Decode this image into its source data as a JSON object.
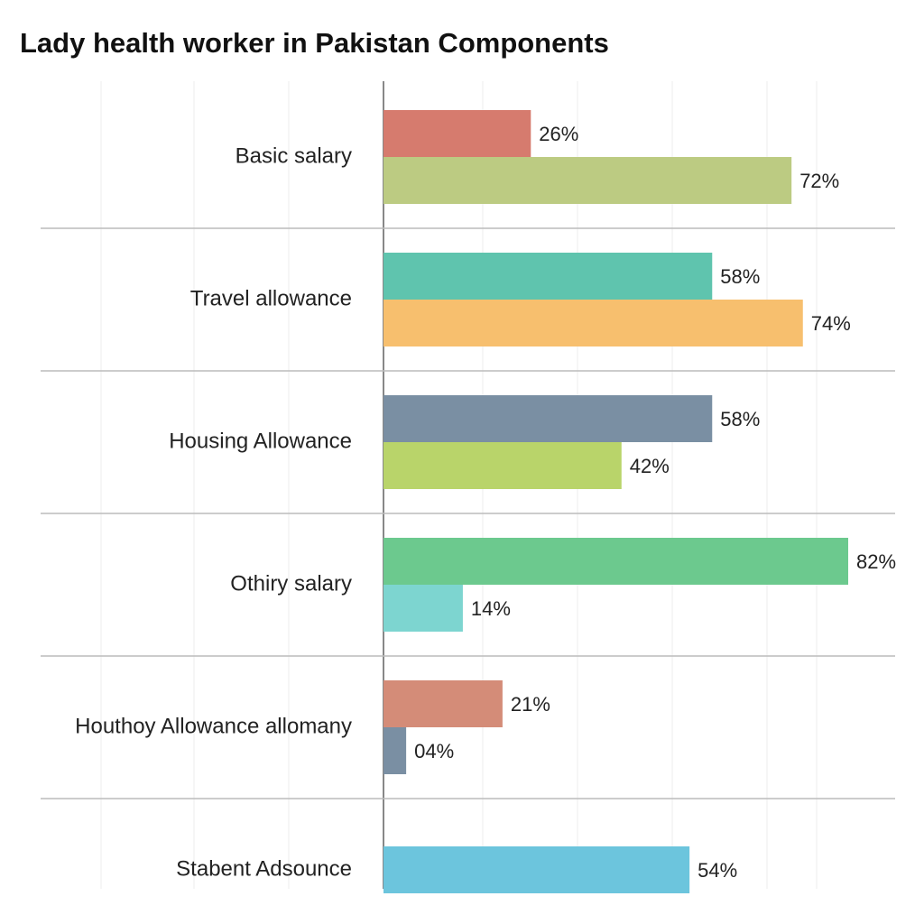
{
  "chart_data": {
    "type": "bar",
    "title": "Lady health worker in Pakistan Components",
    "categories": [
      "Basic salary",
      "Travel allowance",
      "Housing Allowance",
      "Othiry salary",
      "Houthoy Allowance allomany",
      "Stabent Adsounce"
    ],
    "series": [
      {
        "colors": [
          "#d67b6e",
          "#5fc4ae",
          "#7a8fa3",
          "#6cc98e",
          "#d48c78",
          "#6cc5dd"
        ],
        "values": [
          26,
          58,
          58,
          82,
          21,
          54
        ],
        "value_labels": [
          "26%",
          "58%",
          "58%",
          "82%",
          "21%",
          "54%"
        ]
      },
      {
        "colors": [
          "#bccb82",
          "#f7bf6e",
          "#b9d46a",
          "#7dd5d0",
          "#7a8fa3",
          null
        ],
        "values": [
          72,
          74,
          42,
          14,
          4,
          null
        ],
        "value_labels": [
          "72%",
          "74%",
          "42%",
          "14%",
          "04%",
          null
        ]
      }
    ]
  }
}
